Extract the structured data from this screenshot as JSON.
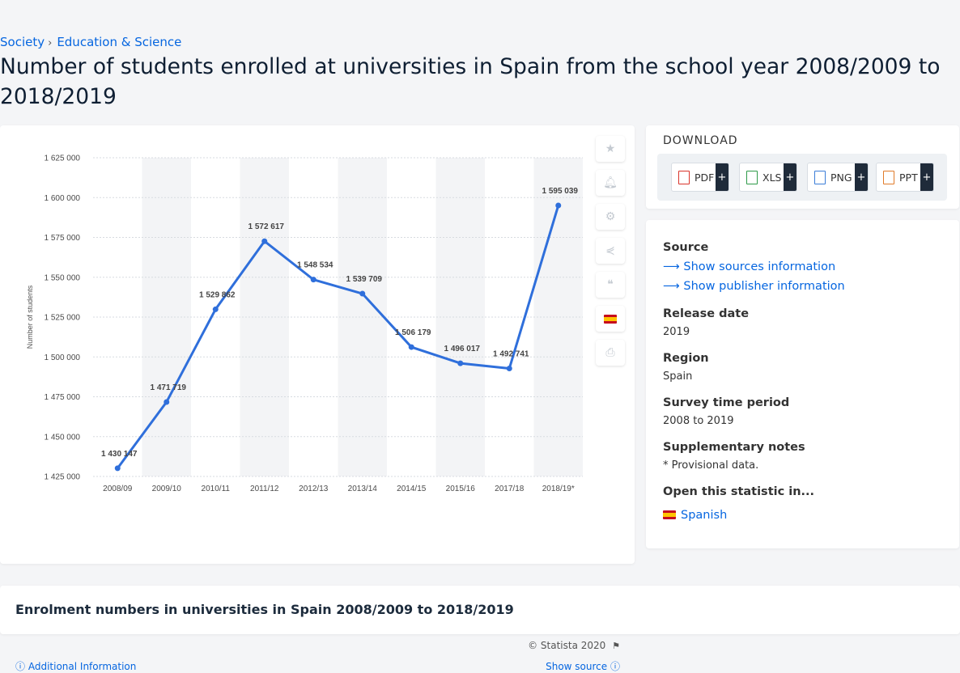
{
  "breadcrumb": [
    "Society",
    "Education & Science"
  ],
  "page_title": "Number of students enrolled at universities in Spain from the school year 2008/2009 to 2018/2019",
  "chart_data": {
    "type": "line",
    "categories": [
      "2008/09",
      "2009/10",
      "2010/11",
      "2011/12",
      "2012/13",
      "2013/14",
      "2014/15",
      "2015/16",
      "2017/18",
      "2018/19*"
    ],
    "values": [
      1430147,
      1471719,
      1529862,
      1572617,
      1548534,
      1539709,
      1506179,
      1496017,
      1492741,
      1595039
    ],
    "data_labels": [
      "1 430 147",
      "1 471 719",
      "1 529 862",
      "1 572 617",
      "1 548 534",
      "1 539 709",
      "1 506 179",
      "1 496 017",
      "1 492 741",
      "1 595 039"
    ],
    "ylabel": "Number of students",
    "ylim": [
      1425000,
      1625000
    ],
    "yticks": [
      1425000,
      1450000,
      1475000,
      1500000,
      1525000,
      1550000,
      1575000,
      1600000,
      1625000
    ],
    "ytick_labels": [
      "1 425 000",
      "1 450 000",
      "1 475 000",
      "1 500 000",
      "1 525 000",
      "1 550 000",
      "1 575 000",
      "1 600 000",
      "1 625 000"
    ],
    "grid": true,
    "line_color": "#2f6fdb"
  },
  "chart_footer": {
    "copyright": "© Statista 2020",
    "additional_info": "Additional Information",
    "show_source": "Show source"
  },
  "tools": [
    "star-icon",
    "bell-icon",
    "gear-icon",
    "share-icon",
    "quote-icon",
    "flag-spain-icon",
    "print-icon"
  ],
  "download": {
    "title": "DOWNLOAD",
    "buttons": [
      {
        "label": "PDF",
        "color": "#d9342b"
      },
      {
        "label": "XLS",
        "color": "#2e9a49"
      },
      {
        "label": "PNG",
        "color": "#3b7dd8"
      },
      {
        "label": "PPT",
        "color": "#e07b2a"
      }
    ],
    "plus": "+"
  },
  "meta": {
    "source_heading": "Source",
    "show_sources": "Show sources information",
    "show_publisher": "Show publisher information",
    "release_heading": "Release date",
    "release_value": "2019",
    "region_heading": "Region",
    "region_value": "Spain",
    "survey_heading": "Survey time period",
    "survey_value": "2008 to 2019",
    "supp_heading": "Supplementary notes",
    "supp_value": "* Provisional data.",
    "open_heading": "Open this statistic in...",
    "open_value": "Spanish"
  },
  "bottom": {
    "title": "Enrolment numbers in universities in Spain 2008/2009 to 2018/2019"
  }
}
